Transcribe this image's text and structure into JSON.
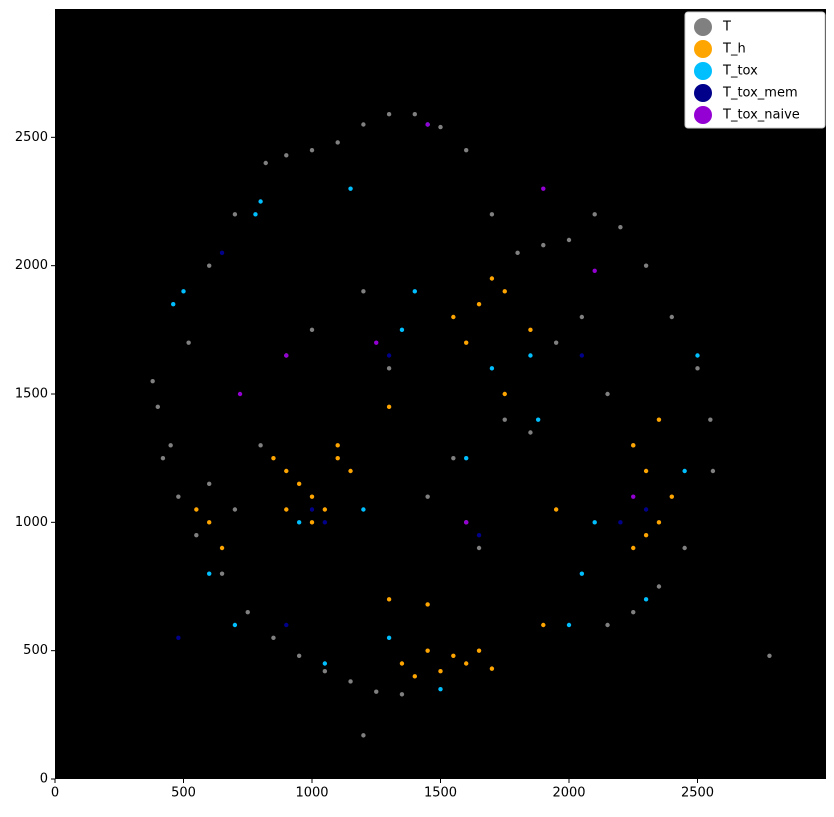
{
  "chart_data": {
    "type": "scatter",
    "xlim": [
      0,
      3000
    ],
    "ylim": [
      0,
      3000
    ],
    "xticks": [
      0,
      500,
      1000,
      1500,
      2000,
      2500
    ],
    "yticks": [
      0,
      500,
      1000,
      1500,
      2000,
      2500
    ],
    "background": "#000000",
    "legend": "upper right",
    "series": [
      {
        "name": "T",
        "color": "#808080",
        "x": [
          400,
          450,
          380,
          520,
          600,
          700,
          820,
          900,
          1000,
          1100,
          1200,
          1300,
          1400,
          1500,
          1600,
          1700,
          1800,
          1900,
          2000,
          2100,
          2200,
          2300,
          2400,
          2500,
          2550,
          2560,
          2450,
          2350,
          2250,
          2150,
          1350,
          1250,
          1150,
          1050,
          950,
          850,
          750,
          650,
          550,
          480,
          420,
          600,
          700,
          800,
          1450,
          1550,
          1650,
          1750,
          1850,
          1950,
          2050,
          2150,
          2250,
          1300,
          1200,
          900,
          1000,
          2780,
          1200,
          1600
        ],
        "values": [
          1450,
          1300,
          1550,
          1700,
          2000,
          2200,
          2400,
          2430,
          2450,
          2480,
          2550,
          2590,
          2590,
          2540,
          2450,
          2200,
          2050,
          2080,
          2100,
          2200,
          2150,
          2000,
          1800,
          1600,
          1400,
          1200,
          900,
          750,
          650,
          600,
          330,
          340,
          380,
          420,
          480,
          550,
          650,
          800,
          950,
          1100,
          1250,
          1150,
          1050,
          1300,
          1100,
          1250,
          900,
          1400,
          1350,
          1700,
          1800,
          1500,
          1300,
          1600,
          1900,
          1650,
          1750,
          480,
          170,
          1000
        ]
      },
      {
        "name": "T_h",
        "color": "#ffa500",
        "x": [
          850,
          900,
          950,
          1000,
          1050,
          1100,
          1150,
          900,
          1000,
          1100,
          1350,
          1400,
          1450,
          1500,
          1550,
          1600,
          1650,
          1700,
          1300,
          1450,
          2250,
          2300,
          2350,
          2400,
          2300,
          2250,
          2350,
          1550,
          1650,
          1750,
          1850,
          1700,
          1600,
          600,
          650,
          550,
          1900,
          1950,
          1750,
          1300
        ],
        "values": [
          1250,
          1200,
          1150,
          1100,
          1050,
          1300,
          1200,
          1050,
          1000,
          1250,
          450,
          400,
          500,
          420,
          480,
          450,
          500,
          430,
          700,
          680,
          900,
          950,
          1000,
          1100,
          1200,
          1300,
          1400,
          1800,
          1850,
          1900,
          1750,
          1950,
          1700,
          1000,
          900,
          1050,
          600,
          1050,
          1500,
          1450
        ]
      },
      {
        "name": "T_tox",
        "color": "#00bfff",
        "x": [
          460,
          500,
          800,
          1150,
          1450,
          1200,
          950,
          700,
          1400,
          1700,
          1850,
          2000,
          2100,
          2300,
          2450,
          2500,
          1600,
          1300,
          1050,
          600,
          780,
          1880,
          2050,
          1500,
          1350
        ],
        "values": [
          1850,
          1900,
          2250,
          2300,
          2550,
          1050,
          1000,
          600,
          1900,
          1600,
          1650,
          600,
          1000,
          700,
          1200,
          1650,
          1250,
          550,
          450,
          800,
          2200,
          1400,
          800,
          350,
          1750
        ]
      },
      {
        "name": "T_tox_mem",
        "color": "#00008b",
        "x": [
          650,
          1050,
          1000,
          2200,
          2300,
          1650,
          1300,
          480,
          2050,
          900
        ],
        "values": [
          2050,
          1000,
          1050,
          1000,
          1050,
          950,
          1650,
          550,
          1650,
          600
        ]
      },
      {
        "name": "T_tox_naive",
        "color": "#9400d3",
        "x": [
          1450,
          1900,
          720,
          2100,
          1600,
          1250,
          900,
          2250
        ],
        "values": [
          2550,
          2300,
          1500,
          1980,
          1000,
          1700,
          1650,
          1100
        ]
      }
    ]
  }
}
